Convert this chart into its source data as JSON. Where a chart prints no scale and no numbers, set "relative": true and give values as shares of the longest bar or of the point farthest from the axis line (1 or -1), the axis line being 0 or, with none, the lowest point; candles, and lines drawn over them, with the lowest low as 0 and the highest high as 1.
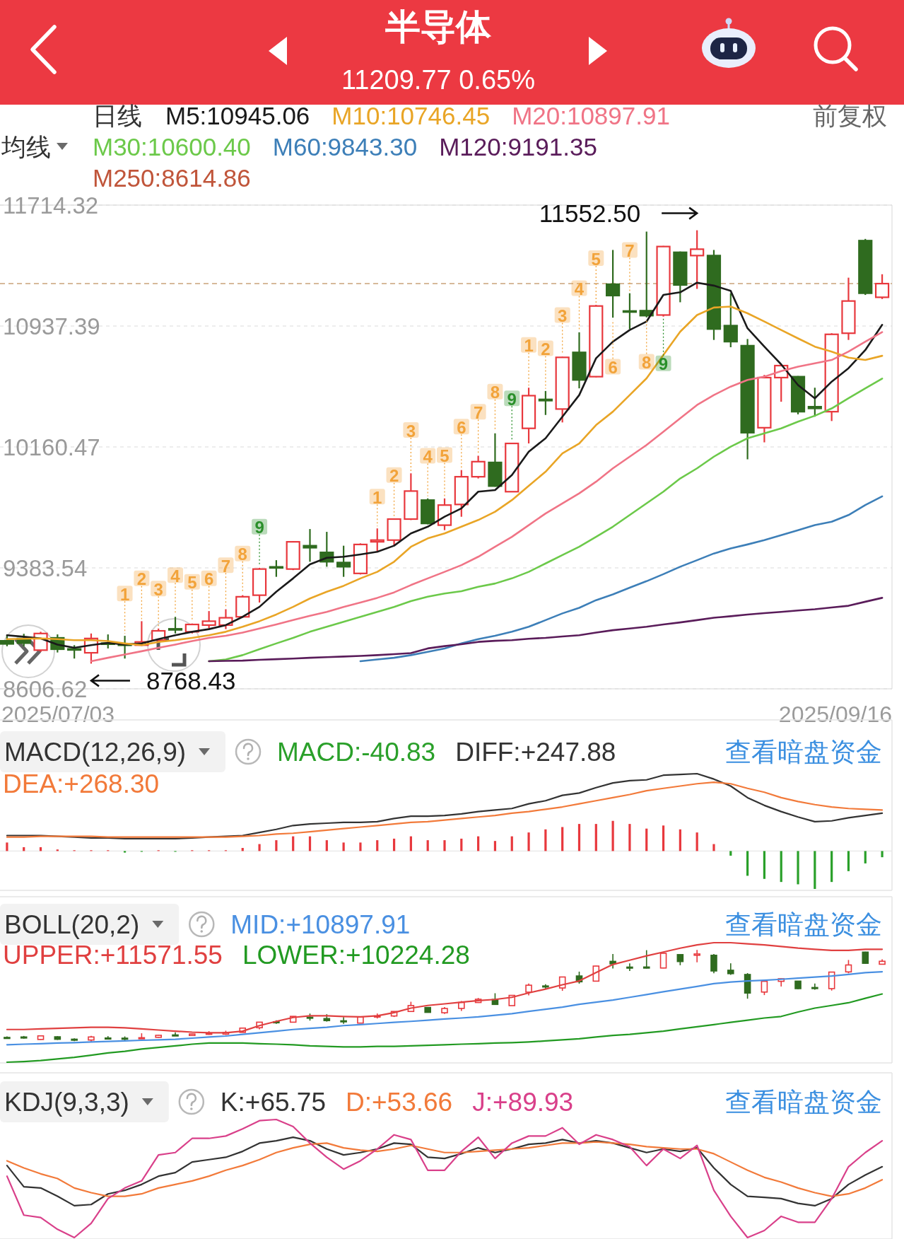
{
  "chart_data": [
    {
      "type": "candlestick",
      "title": "半导体",
      "subtitle": "11209.77 0.65%",
      "legend_title": "日线",
      "legend": "top",
      "grid": "y",
      "tick_labels": "y",
      "categories": [
        null,
        null,
        null,
        null,
        null,
        null,
        null,
        null,
        null,
        null,
        null,
        null,
        null,
        null,
        null,
        null,
        null,
        null,
        null,
        null,
        null,
        null,
        null,
        null,
        null,
        null,
        null,
        null,
        null,
        null,
        null,
        null,
        null,
        null,
        null,
        null,
        null,
        null,
        null,
        null,
        null,
        null,
        null,
        null,
        null,
        null,
        null,
        null,
        null,
        null,
        null,
        null,
        null
      ],
      "ylim": [
        8606.62,
        11714.32
      ],
      "yticks": [
        8606.62,
        9383.54,
        10160.47,
        10937.39,
        11714.32
      ],
      "ohlc": [
        [
          8915,
          8950,
          8880,
          8895
        ],
        [
          8930,
          8960,
          8880,
          8900
        ],
        [
          8855,
          8973,
          8844,
          8962
        ],
        [
          8934,
          8956,
          8840,
          8861
        ],
        [
          8863,
          8887,
          8801,
          8858
        ],
        [
          8838,
          8962,
          8768.43,
          8930
        ],
        [
          8900,
          8956,
          8866,
          8895
        ],
        [
          8893,
          8947,
          8801,
          8890
        ],
        [
          8887,
          9041,
          8882,
          8908
        ],
        [
          8919,
          8994,
          8908,
          8979
        ],
        [
          8992,
          9069,
          8962,
          8987
        ],
        [
          8973,
          9026,
          8962,
          9020
        ],
        [
          9016,
          9106,
          8994,
          9041
        ],
        [
          9016,
          9118,
          8990,
          9063
        ],
        [
          9069,
          9208,
          9063,
          9198
        ],
        [
          9208,
          9384,
          9161,
          9376
        ],
        [
          9390,
          9433,
          9326,
          9388
        ],
        [
          9376,
          9556,
          9369,
          9551
        ],
        [
          9526,
          9633,
          9423,
          9513
        ],
        [
          9483,
          9615,
          9391,
          9423
        ],
        [
          9418,
          9526,
          9326,
          9391
        ],
        [
          9348,
          9541,
          9341,
          9534
        ],
        [
          9551,
          9637,
          9487,
          9562
        ],
        [
          9562,
          9701,
          9530,
          9697
        ],
        [
          9697,
          9991,
          9691,
          9877
        ],
        [
          9819,
          9830,
          9663,
          9669
        ],
        [
          9658,
          9830,
          9626,
          9787
        ],
        [
          9791,
          10012,
          9712,
          9969
        ],
        [
          9969,
          10104,
          9958,
          10066
        ],
        [
          10061,
          10248,
          9905,
          9909
        ],
        [
          9873,
          10183,
          9873,
          10183
        ],
        [
          10280,
          10541,
          10183,
          10490
        ],
        [
          10466,
          10520,
          10366,
          10458
        ],
        [
          10404,
          10740,
          10318,
          10736
        ],
        [
          10768,
          10897,
          10537,
          10591
        ],
        [
          10612,
          11073,
          10608,
          11066
        ],
        [
          11206,
          11426,
          10991,
          11133
        ],
        [
          11034,
          11148,
          10918,
          11028
        ],
        [
          11036,
          11544,
          10993,
          11004
        ],
        [
          11008,
          11452,
          10998,
          11448
        ],
        [
          11411,
          11416,
          11090,
          11201
        ],
        [
          11390,
          11552.5,
          11176,
          11431
        ],
        [
          11390,
          11426,
          10848,
          10918
        ],
        [
          10940,
          11148,
          10801,
          10837
        ],
        [
          10811,
          10854,
          10081,
          10252
        ],
        [
          10284,
          10623,
          10190,
          10606
        ],
        [
          10606,
          10691,
          10451,
          10683
        ],
        [
          10612,
          10616,
          10370,
          10387
        ],
        [
          10419,
          10541,
          10355,
          10408
        ],
        [
          10387,
          10891,
          10327,
          10884
        ],
        [
          10891,
          11248,
          10848,
          11098
        ],
        [
          11486,
          11497,
          11137,
          11148
        ],
        [
          11122,
          11270,
          11111,
          11209.77
        ]
      ],
      "colors": [
        "#2f6b1f",
        "#2f6b1f",
        "#e8383d",
        "#2f6b1f",
        "#2f6b1f",
        "#e8383d",
        "#2f6b1f",
        "#2f6b1f",
        "#e8383d",
        "#e8383d",
        "#2f6b1f",
        "#e8383d",
        "#e8383d",
        "#e8383d",
        "#e8383d",
        "#e8383d",
        "#2f6b1f",
        "#e8383d",
        "#2f6b1f",
        "#2f6b1f",
        "#2f6b1f",
        "#e8383d",
        "#e8383d",
        "#e8383d",
        "#e8383d",
        "#2f6b1f",
        "#e8383d",
        "#e8383d",
        "#e8383d",
        "#2f6b1f",
        "#e8383d",
        "#e8383d",
        "#2f6b1f",
        "#e8383d",
        "#2f6b1f",
        "#e8383d",
        "#2f6b1f",
        "#2f6b1f",
        "#2f6b1f",
        "#e8383d",
        "#2f6b1f",
        "#e8383d",
        "#2f6b1f",
        "#2f6b1f",
        "#2f6b1f",
        "#e8383d",
        "#e8383d",
        "#2f6b1f",
        "#2f6b1f",
        "#e8383d",
        "#e8383d",
        "#2f6b1f",
        "#e8383d"
      ],
      "series": [
        {
          "name": "M5:10945.06",
          "type": "line",
          "color": "#1a1a1a",
          "values": [
            8951,
            8941,
            8930,
            8891,
            8870,
            8887,
            8902,
            8891,
            8898,
            8926,
            8951,
            8973,
            8990,
            9016,
            9069,
            9133,
            9230,
            9316,
            9406,
            9448,
            9455,
            9470,
            9487,
            9526,
            9605,
            9648,
            9712,
            9766,
            9873,
            9883,
            9980,
            10130,
            10216,
            10355,
            10494,
            10730,
            10837,
            10912,
            10966,
            11137,
            11154,
            11216,
            11197,
            11163,
            10923,
            10805,
            10691,
            10558,
            10473,
            10580,
            10666,
            10783,
            10945
          ]
        },
        {
          "name": "M10:10746.45",
          "type": "line",
          "color": "#e9a526",
          "values": [
            8926,
            8928,
            8930,
            8926,
            8919,
            8919,
            8913,
            8898,
            8887,
            8908,
            8919,
            8934,
            8951,
            8973,
            9005,
            9041,
            9084,
            9133,
            9187,
            9230,
            9268,
            9316,
            9358,
            9423,
            9519,
            9573,
            9605,
            9648,
            9691,
            9744,
            9819,
            9911,
            10001,
            10119,
            10183,
            10301,
            10387,
            10494,
            10601,
            10751,
            10901,
            11008,
            11056,
            11062,
            11019,
            10966,
            10912,
            10858,
            10805,
            10773,
            10734,
            10719,
            10746
          ]
        },
        {
          "name": "M20:10897.91",
          "type": "line",
          "color": "#f07486",
          "values": [
            null,
            null,
            null,
            null,
            null,
            8784,
            8806,
            8827,
            8848,
            8870,
            8891,
            8913,
            8934,
            8947,
            8968,
            8994,
            9020,
            9048,
            9076,
            9101,
            9133,
            9161,
            9191,
            9226,
            9273,
            9316,
            9358,
            9401,
            9455,
            9519,
            9583,
            9658,
            9733,
            9798,
            9862,
            9937,
            10023,
            10098,
            10173,
            10258,
            10344,
            10430,
            10494,
            10548,
            10591,
            10612,
            10648,
            10676,
            10698,
            10719,
            10773,
            10837,
            10898
          ]
        },
        {
          "name": "M30:10600.40",
          "type": "line",
          "color": "#6cc94a",
          "values": [
            null,
            null,
            null,
            null,
            null,
            null,
            null,
            null,
            null,
            null,
            null,
            null,
            8784,
            8795,
            8823,
            8861,
            8898,
            8934,
            8973,
            9005,
            9037,
            9069,
            9101,
            9133,
            9170,
            9198,
            9219,
            9234,
            9262,
            9283,
            9316,
            9358,
            9412,
            9466,
            9519,
            9583,
            9648,
            9723,
            9798,
            9873,
            9958,
            10023,
            10098,
            10162,
            10216,
            10248,
            10280,
            10323,
            10361,
            10408,
            10473,
            10537,
            10600
          ]
        },
        {
          "name": "M60:9843.30",
          "type": "line",
          "color": "#3d7fb8",
          "values": [
            null,
            null,
            null,
            null,
            null,
            null,
            null,
            null,
            null,
            null,
            null,
            null,
            null,
            null,
            null,
            null,
            null,
            null,
            null,
            null,
            null,
            8784,
            8795,
            8806,
            8823,
            8844,
            8866,
            8898,
            8926,
            8947,
            8973,
            9005,
            9048,
            9091,
            9127,
            9176,
            9213,
            9256,
            9298,
            9343,
            9391,
            9433,
            9476,
            9508,
            9534,
            9562,
            9594,
            9626,
            9658,
            9680,
            9723,
            9787,
            9843
          ]
        },
        {
          "name": "M120:9191.35",
          "type": "line",
          "color": "#5a1c5a",
          "values": [
            null,
            null,
            null,
            null,
            null,
            null,
            null,
            null,
            null,
            null,
            null,
            null,
            8784,
            8786,
            8788,
            8793,
            8797,
            8801,
            8806,
            8810,
            8814,
            8818,
            8823,
            8829,
            8836,
            8866,
            8881,
            8893,
            8908,
            8915,
            8919,
            8928,
            8934,
            8943,
            8951,
            8968,
            8983,
            8994,
            9005,
            9020,
            9033,
            9048,
            9063,
            9073,
            9084,
            9093,
            9101,
            9110,
            9118,
            9129,
            9140,
            9166,
            9191
          ]
        },
        {
          "name": "M250:8614.86",
          "type": "line",
          "color": "#c0553a",
          "values": [
            null,
            null,
            null,
            null,
            null,
            null,
            null,
            null,
            null,
            null,
            null,
            null,
            null,
            null,
            null,
            null,
            null,
            null,
            null,
            null,
            null,
            null,
            null,
            null,
            null,
            null,
            null,
            null,
            null,
            null,
            null,
            null,
            null,
            null,
            null,
            null,
            null,
            null,
            null,
            null,
            null,
            null,
            null,
            null,
            null,
            null,
            null,
            null,
            null,
            null,
            null,
            null,
            null
          ]
        },
        {
          "type": "scatter",
          "marker": "square",
          "color": "#f2a33a",
          "values": [
            null,
            null,
            null,
            null,
            null,
            null,
            null,
            9219,
            9316,
            9251,
            9337,
            9294,
            9316,
            9401,
            9476,
            null,
            null,
            null,
            null,
            null,
            null,
            null,
            9841,
            9980,
            10269,
            10104,
            10108,
            10291,
            10387,
            10516,
            null,
            10816,
            10794,
            11008,
            11180,
            11373,
            10676,
            11426,
            10708,
            null,
            null,
            null,
            null,
            null,
            null,
            null,
            null,
            null,
            null,
            null,
            null,
            null,
            null
          ]
        },
        {
          "type": "scatter",
          "marker": "square",
          "color": "#2a8f2a",
          "values": [
            null,
            null,
            null,
            null,
            null,
            null,
            null,
            null,
            null,
            null,
            null,
            null,
            null,
            null,
            null,
            9648,
            null,
            null,
            null,
            null,
            null,
            null,
            null,
            null,
            null,
            null,
            null,
            null,
            null,
            null,
            10473,
            null,
            null,
            null,
            null,
            null,
            null,
            null,
            null,
            10698,
            null,
            null,
            null,
            null,
            null,
            null,
            null,
            null,
            null,
            null,
            null,
            null,
            null
          ]
        }
      ],
      "ref_lines": [
        {
          "axis": "y",
          "value": 11209.77,
          "color": "#c9a27a",
          "line_style": "dashed"
        }
      ],
      "annotations": [
        "均线",
        "前复权",
        "11552.50",
        "8768.43",
        "2025/07/03",
        "2025/09/16",
        "1",
        "2",
        "3",
        "4",
        "5",
        "6",
        "7",
        "8",
        "1",
        "2",
        "3",
        "4",
        "5",
        "6",
        "7",
        "8",
        "1",
        "2",
        "3",
        "4",
        "5",
        "6",
        "7",
        "8",
        "9",
        "9",
        "9"
      ]
    },
    {
      "type": "line",
      "title": "MACD(12,26,9)",
      "relative": true,
      "legend": "top",
      "tick_labels": false,
      "categories": [
        null,
        null,
        null,
        null,
        null,
        null,
        null,
        null,
        null,
        null,
        null,
        null,
        null,
        null,
        null,
        null,
        null,
        null,
        null,
        null,
        null,
        null,
        null,
        null,
        null,
        null,
        null,
        null,
        null,
        null,
        null,
        null,
        null,
        null,
        null,
        null,
        null,
        null,
        null,
        null,
        null,
        null,
        null,
        null,
        null,
        null,
        null,
        null,
        null,
        null,
        null,
        null,
        null
      ],
      "series": [
        {
          "name": "MACD:-40.83",
          "type": "bar",
          "values": [
            0.11,
            0.05,
            0.05,
            0.02,
            0.01,
            0.01,
            0.01,
            -0.02,
            -0.01,
            0.01,
            -0.01,
            0.01,
            0.01,
            0.01,
            0.04,
            0.09,
            0.14,
            0.19,
            0.19,
            0.14,
            0.11,
            0.11,
            0.14,
            0.16,
            0.19,
            0.14,
            0.14,
            0.16,
            0.19,
            0.13,
            0.19,
            0.24,
            0.28,
            0.31,
            0.35,
            0.35,
            0.39,
            0.35,
            0.29,
            0.33,
            0.28,
            0.24,
            0.09,
            -0.06,
            -0.32,
            -0.36,
            -0.4,
            -0.43,
            -0.49,
            -0.4,
            -0.26,
            -0.16,
            -0.08
          ],
          "colors": [
            "#e8383d",
            "#e8383d",
            "#e8383d",
            "#e8383d",
            "#e8383d",
            "#e8383d",
            "#e8383d",
            "#2aa02a",
            "#2aa02a",
            "#e8383d",
            "#2aa02a",
            "#e8383d",
            "#e8383d",
            "#e8383d",
            "#e8383d",
            "#e8383d",
            "#e8383d",
            "#e8383d",
            "#e8383d",
            "#e8383d",
            "#e8383d",
            "#e8383d",
            "#e8383d",
            "#e8383d",
            "#e8383d",
            "#e8383d",
            "#e8383d",
            "#e8383d",
            "#e8383d",
            "#e8383d",
            "#e8383d",
            "#e8383d",
            "#e8383d",
            "#e8383d",
            "#e8383d",
            "#e8383d",
            "#e8383d",
            "#e8383d",
            "#e8383d",
            "#e8383d",
            "#e8383d",
            "#e8383d",
            "#e8383d",
            "#2aa02a",
            "#2aa02a",
            "#2aa02a",
            "#2aa02a",
            "#2aa02a",
            "#2aa02a",
            "#2aa02a",
            "#2aa02a",
            "#2aa02a",
            "#2aa02a"
          ]
        },
        {
          "name": "DIFF:+247.88",
          "type": "line",
          "color": "#333333",
          "values": [
            0.2,
            0.2,
            0.2,
            0.19,
            0.18,
            0.17,
            0.17,
            0.16,
            0.16,
            0.16,
            0.16,
            0.17,
            0.18,
            0.19,
            0.2,
            0.24,
            0.28,
            0.33,
            0.35,
            0.36,
            0.37,
            0.37,
            0.38,
            0.42,
            0.45,
            0.45,
            0.46,
            0.48,
            0.51,
            0.53,
            0.55,
            0.61,
            0.65,
            0.72,
            0.75,
            0.82,
            0.88,
            0.91,
            0.92,
            0.98,
            0.99,
            1.0,
            0.93,
            0.84,
            0.69,
            0.59,
            0.51,
            0.44,
            0.38,
            0.39,
            0.43,
            0.46,
            0.49
          ]
        },
        {
          "name": "DEA:+268.30",
          "type": "line",
          "color": "#f27a3a",
          "values": [
            0.18,
            0.18,
            0.19,
            0.19,
            0.19,
            0.19,
            0.18,
            0.18,
            0.18,
            0.18,
            0.18,
            0.18,
            0.18,
            0.18,
            0.19,
            0.2,
            0.22,
            0.23,
            0.25,
            0.27,
            0.29,
            0.31,
            0.33,
            0.35,
            0.37,
            0.38,
            0.4,
            0.42,
            0.44,
            0.46,
            0.49,
            0.51,
            0.54,
            0.57,
            0.61,
            0.65,
            0.69,
            0.73,
            0.78,
            0.81,
            0.84,
            0.87,
            0.89,
            0.87,
            0.81,
            0.76,
            0.69,
            0.64,
            0.6,
            0.57,
            0.55,
            0.54,
            0.53
          ]
        }
      ],
      "annotations": [
        "查看暗盘资金"
      ]
    },
    {
      "type": "candlestick",
      "title": "BOLL(20,2)",
      "relative": true,
      "legend": "top",
      "tick_labels": false,
      "categories": [
        null,
        null,
        null,
        null,
        null,
        null,
        null,
        null,
        null,
        null,
        null,
        null,
        null,
        null,
        null,
        null,
        null,
        null,
        null,
        null,
        null,
        null,
        null,
        null,
        null,
        null,
        null,
        null,
        null,
        null,
        null,
        null,
        null,
        null,
        null,
        null,
        null,
        null,
        null,
        null,
        null,
        null,
        null,
        null,
        null,
        null,
        null,
        null,
        null,
        null,
        null,
        null,
        null
      ],
      "ohlc": [
        [
          0.053,
          0.065,
          0.04,
          0.045
        ],
        [
          0.058,
          0.069,
          0.04,
          0.047
        ],
        [
          0.031,
          0.074,
          0.027,
          0.07
        ],
        [
          0.06,
          0.067,
          0.026,
          0.033
        ],
        [
          0.034,
          0.043,
          0.012,
          0.032
        ],
        [
          0.025,
          0.07,
          0.0,
          0.058
        ],
        [
          0.047,
          0.067,
          0.035,
          0.046
        ],
        [
          0.045,
          0.064,
          0.012,
          0.044
        ],
        [
          0.043,
          0.098,
          0.041,
          0.05
        ],
        [
          0.054,
          0.081,
          0.05,
          0.076
        ],
        [
          0.08,
          0.108,
          0.07,
          0.079
        ],
        [
          0.074,
          0.093,
          0.07,
          0.09
        ],
        [
          0.089,
          0.121,
          0.081,
          0.098
        ],
        [
          0.089,
          0.126,
          0.08,
          0.106
        ],
        [
          0.108,
          0.158,
          0.106,
          0.154
        ],
        [
          0.158,
          0.221,
          0.141,
          0.218
        ],
        [
          0.223,
          0.239,
          0.2,
          0.223
        ],
        [
          0.218,
          0.283,
          0.216,
          0.281
        ],
        [
          0.272,
          0.311,
          0.235,
          0.267
        ],
        [
          0.257,
          0.304,
          0.224,
          0.235
        ],
        [
          0.233,
          0.272,
          0.2,
          0.224
        ],
        [
          0.208,
          0.278,
          0.206,
          0.275
        ],
        [
          0.281,
          0.312,
          0.258,
          0.285
        ],
        [
          0.285,
          0.335,
          0.274,
          0.334
        ],
        [
          0.334,
          0.439,
          0.331,
          0.398
        ],
        [
          0.377,
          0.381,
          0.321,
          0.324
        ],
        [
          0.32,
          0.381,
          0.308,
          0.366
        ],
        [
          0.367,
          0.447,
          0.339,
          0.431
        ],
        [
          0.431,
          0.48,
          0.427,
          0.466
        ],
        [
          0.464,
          0.531,
          0.408,
          0.41
        ],
        [
          0.397,
          0.508,
          0.397,
          0.508
        ],
        [
          0.543,
          0.637,
          0.508,
          0.618
        ],
        [
          0.61,
          0.629,
          0.574,
          0.607
        ],
        [
          0.588,
          0.708,
          0.557,
          0.707
        ],
        [
          0.718,
          0.765,
          0.635,
          0.655
        ],
        [
          0.662,
          0.828,
          0.661,
          0.825
        ],
        [
          0.876,
          0.955,
          0.798,
          0.849
        ],
        [
          0.814,
          0.855,
          0.772,
          0.812
        ],
        [
          0.815,
          0.997,
          0.799,
          0.803
        ],
        [
          0.804,
          0.964,
          0.801,
          0.963
        ],
        [
          0.949,
          0.951,
          0.834,
          0.874
        ],
        [
          0.942,
          1.0,
          0.865,
          0.956
        ],
        [
          0.942,
          0.955,
          0.747,
          0.772
        ],
        [
          0.78,
          0.855,
          0.73,
          0.743
        ],
        [
          0.734,
          0.749,
          0.472,
          0.533
        ],
        [
          0.544,
          0.666,
          0.511,
          0.66
        ],
        [
          0.66,
          0.691,
          0.604,
          0.688
        ],
        [
          0.662,
          0.664,
          0.575,
          0.581
        ],
        [
          0.593,
          0.637,
          0.57,
          0.589
        ],
        [
          0.581,
          0.762,
          0.56,
          0.76
        ],
        [
          0.762,
          0.891,
          0.747,
          0.837
        ],
        [
          0.976,
          0.98,
          0.851,
          0.855
        ],
        [
          0.845,
          0.899,
          0.841,
          0.877
        ]
      ],
      "colors": [
        "#2f6b1f",
        "#2f6b1f",
        "#e8383d",
        "#2f6b1f",
        "#2f6b1f",
        "#e8383d",
        "#2f6b1f",
        "#2f6b1f",
        "#e8383d",
        "#e8383d",
        "#2f6b1f",
        "#e8383d",
        "#e8383d",
        "#e8383d",
        "#e8383d",
        "#e8383d",
        "#2f6b1f",
        "#e8383d",
        "#2f6b1f",
        "#2f6b1f",
        "#2f6b1f",
        "#e8383d",
        "#e8383d",
        "#e8383d",
        "#e8383d",
        "#2f6b1f",
        "#e8383d",
        "#e8383d",
        "#e8383d",
        "#2f6b1f",
        "#e8383d",
        "#e8383d",
        "#2f6b1f",
        "#e8383d",
        "#2f6b1f",
        "#e8383d",
        "#2f6b1f",
        "#2f6b1f",
        "#2f6b1f",
        "#e8383d",
        "#2f6b1f",
        "#e8383d",
        "#2f6b1f",
        "#2f6b1f",
        "#2f6b1f",
        "#e8383d",
        "#e8383d",
        "#2f6b1f",
        "#2f6b1f",
        "#e8383d",
        "#e8383d",
        "#2f6b1f",
        "#e8383d"
      ],
      "series": [
        {
          "name": "MID:+10897.91",
          "type": "line",
          "color": "#4a90e2",
          "values": [
            -0.026,
            -0.02,
            -0.015,
            -0.008,
            -0.003,
            0.004,
            0.009,
            0.015,
            0.022,
            0.027,
            0.033,
            0.045,
            0.057,
            0.068,
            0.086,
            0.104,
            0.121,
            0.139,
            0.151,
            0.163,
            0.181,
            0.192,
            0.204,
            0.216,
            0.227,
            0.239,
            0.252,
            0.263,
            0.275,
            0.293,
            0.31,
            0.335,
            0.358,
            0.381,
            0.411,
            0.434,
            0.457,
            0.487,
            0.517,
            0.547,
            0.576,
            0.605,
            0.635,
            0.653,
            0.664,
            0.671,
            0.682,
            0.694,
            0.706,
            0.717,
            0.735,
            0.754,
            0.764
          ]
        },
        {
          "name": "UPPER:+11571.55",
          "type": "line",
          "color": "#e04040",
          "values": [
            0.139,
            0.139,
            0.145,
            0.151,
            0.157,
            0.163,
            0.163,
            0.157,
            0.145,
            0.133,
            0.121,
            0.11,
            0.104,
            0.104,
            0.121,
            0.181,
            0.227,
            0.269,
            0.287,
            0.287,
            0.28,
            0.275,
            0.287,
            0.322,
            0.37,
            0.399,
            0.416,
            0.434,
            0.452,
            0.464,
            0.487,
            0.535,
            0.576,
            0.623,
            0.664,
            0.754,
            0.842,
            0.889,
            0.936,
            0.977,
            1.019,
            1.054,
            1.078,
            1.078,
            1.065,
            1.054,
            1.037,
            1.019,
            1.007,
            0.995,
            0.995,
            1.007,
            1.007
          ]
        },
        {
          "name": "LOWER:+10224.28",
          "type": "line",
          "color": "#229a22",
          "values": [
            -0.215,
            -0.208,
            -0.197,
            -0.18,
            -0.162,
            -0.139,
            -0.114,
            -0.097,
            -0.073,
            -0.056,
            -0.038,
            -0.02,
            -0.008,
            -0.008,
            -0.008,
            -0.015,
            -0.02,
            -0.026,
            -0.038,
            -0.044,
            -0.049,
            -0.049,
            -0.044,
            -0.044,
            -0.038,
            -0.033,
            -0.026,
            -0.02,
            -0.015,
            -0.008,
            -0.003,
            0.004,
            0.015,
            0.027,
            0.038,
            0.057,
            0.075,
            0.086,
            0.104,
            0.121,
            0.145,
            0.169,
            0.192,
            0.216,
            0.239,
            0.263,
            0.28,
            0.328,
            0.37,
            0.399,
            0.428,
            0.476,
            0.523
          ]
        }
      ],
      "annotations": [
        "查看暗盘资金"
      ]
    },
    {
      "type": "line",
      "title": "KDJ(9,3,3)",
      "relative": true,
      "legend": "top",
      "tick_labels": false,
      "categories": [
        null,
        null,
        null,
        null,
        null,
        null,
        null,
        null,
        null,
        null,
        null,
        null,
        null,
        null,
        null,
        null,
        null,
        null,
        null,
        null,
        null,
        null,
        null,
        null,
        null,
        null,
        null,
        null,
        null,
        null,
        null,
        null,
        null,
        null,
        null,
        null,
        null,
        null,
        null,
        null,
        null,
        null,
        null,
        null,
        null,
        null,
        null,
        null,
        null,
        null,
        null,
        null,
        null
      ],
      "series": [
        {
          "name": "K:+65.75",
          "color": "#333333",
          "values": [
            0.61,
            0.43,
            0.42,
            0.35,
            0.27,
            0.28,
            0.37,
            0.4,
            0.45,
            0.52,
            0.55,
            0.64,
            0.66,
            0.68,
            0.73,
            0.8,
            0.82,
            0.85,
            0.82,
            0.75,
            0.7,
            0.72,
            0.75,
            0.8,
            0.79,
            0.68,
            0.67,
            0.71,
            0.76,
            0.72,
            0.75,
            0.79,
            0.8,
            0.83,
            0.8,
            0.82,
            0.8,
            0.76,
            0.72,
            0.75,
            0.73,
            0.76,
            0.59,
            0.45,
            0.35,
            0.34,
            0.33,
            0.29,
            0.27,
            0.33,
            0.45,
            0.53,
            0.6
          ]
        },
        {
          "name": "D:+53.66",
          "color": "#f27a3a",
          "values": [
            0.65,
            0.59,
            0.54,
            0.5,
            0.42,
            0.38,
            0.35,
            0.35,
            0.37,
            0.42,
            0.45,
            0.48,
            0.52,
            0.57,
            0.61,
            0.66,
            0.72,
            0.76,
            0.79,
            0.8,
            0.76,
            0.74,
            0.73,
            0.75,
            0.78,
            0.75,
            0.72,
            0.72,
            0.73,
            0.74,
            0.75,
            0.76,
            0.78,
            0.8,
            0.8,
            0.81,
            0.8,
            0.79,
            0.77,
            0.76,
            0.75,
            0.75,
            0.71,
            0.64,
            0.57,
            0.51,
            0.47,
            0.42,
            0.38,
            0.35,
            0.37,
            0.42,
            0.49
          ]
        },
        {
          "name": "J:+89.93",
          "color": "#d9408a",
          "values": [
            0.52,
            0.19,
            0.17,
            0.07,
            0.0,
            0.12,
            0.33,
            0.42,
            0.48,
            0.7,
            0.72,
            0.84,
            0.84,
            0.86,
            0.92,
            0.99,
            1.0,
            0.94,
            0.8,
            0.68,
            0.58,
            0.65,
            0.75,
            0.87,
            0.83,
            0.57,
            0.57,
            0.73,
            0.85,
            0.67,
            0.8,
            0.86,
            0.86,
            0.93,
            0.79,
            0.87,
            0.83,
            0.77,
            0.61,
            0.75,
            0.67,
            0.78,
            0.4,
            0.18,
            0.0,
            0.06,
            0.18,
            0.13,
            0.13,
            0.33,
            0.6,
            0.72,
            0.82
          ]
        }
      ],
      "annotations": [
        "查看暗盘资金"
      ]
    }
  ]
}
